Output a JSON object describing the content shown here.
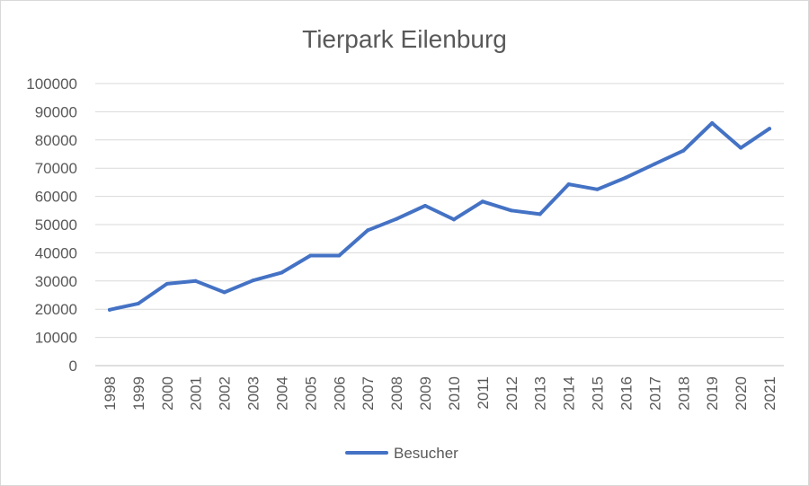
{
  "chart_data": {
    "type": "line",
    "title": "Tierpark Eilenburg",
    "xlabel": "",
    "ylabel": "",
    "categories": [
      "1998",
      "1999",
      "2000",
      "2001",
      "2002",
      "2003",
      "2004",
      "2005",
      "2006",
      "2007",
      "2008",
      "2009",
      "2010",
      "2011",
      "2012",
      "2013",
      "2014",
      "2015",
      "2016",
      "2017",
      "2018",
      "2019",
      "2020",
      "2021"
    ],
    "series": [
      {
        "name": "Besucher",
        "color": "#4472c4",
        "values": [
          19800,
          22000,
          29000,
          30000,
          26000,
          30200,
          33000,
          39000,
          39000,
          48000,
          52000,
          56700,
          51800,
          58200,
          55000,
          53700,
          64300,
          62500,
          66700,
          71500,
          76200,
          86000,
          77200,
          84000
        ]
      }
    ],
    "ylim": [
      0,
      100000
    ],
    "yticks": [
      0,
      10000,
      20000,
      30000,
      40000,
      50000,
      60000,
      70000,
      80000,
      90000,
      100000
    ],
    "grid": true,
    "legend_position": "bottom"
  }
}
